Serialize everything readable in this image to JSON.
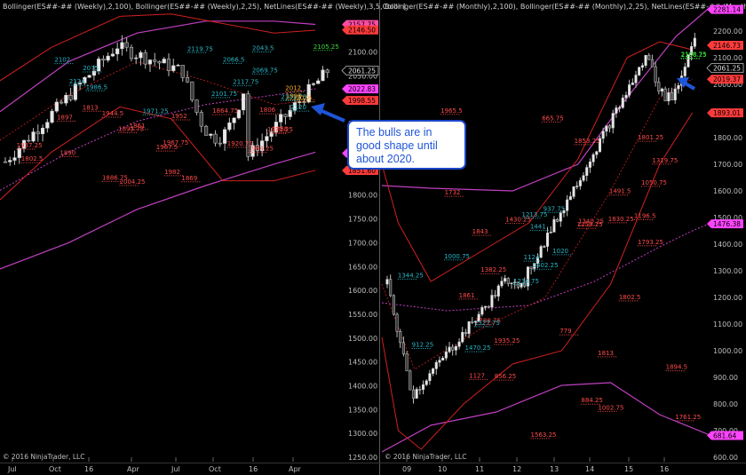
{
  "panels": [
    {
      "id": "weekly",
      "header": "Bollinger(ES##-## (Weekly),2,100), Bollinger(ES##-## (Weekly),2,25), NetLines(ES##-## (Weekly),3,5,Color [",
      "copyright": "© 2016 NinjaTrader, LLC",
      "y_ticks": [
        2200,
        2150,
        2100,
        2050,
        2000,
        1950,
        1900,
        1850,
        1800,
        1750,
        1700,
        1650,
        1600,
        1550,
        1500,
        1450,
        1400,
        1350,
        1300,
        1250
      ],
      "x_labels": [
        "Jul",
        "Oct",
        "16",
        "Apr",
        "Jul",
        "Oct",
        "16",
        "Apr"
      ],
      "price_tags": [
        {
          "text": "2157.75",
          "color": "#ff4da6"
        },
        {
          "text": "2146.50",
          "color": "#ff3b3b"
        },
        {
          "text": "2061.25",
          "color": "#000000"
        },
        {
          "text": "2022.83",
          "color": "#ff44ff"
        },
        {
          "text": "1998.55",
          "color": "#ff3b3b"
        },
        {
          "text": "1887.87",
          "color": "#ff44ff"
        },
        {
          "text": "1851.60",
          "color": "#ff3b3b"
        }
      ],
      "annotations_red": [
        "1864.75",
        "1952",
        "1897",
        "1944.5",
        "1890",
        "1972.25",
        "1813",
        "1982",
        "1967.75",
        "1984.25",
        "1937.25",
        "1893.75",
        "1861",
        "1868",
        "1920.75",
        "1886.75",
        "1869",
        "1802.5",
        "1806",
        "2004.25",
        "1967.5"
      ],
      "annotations_teal": [
        "2117.75",
        "2124",
        "2103.75",
        "2101.75",
        "2120",
        "2102",
        "2119.75",
        "2075",
        "2043.5",
        "2069.75",
        "1986.5",
        "1971.25",
        "2066.5"
      ],
      "annotations_green": [
        "2105.25"
      ],
      "annotations_orange": [
        "2026",
        "2012",
        "1995"
      ]
    },
    {
      "id": "monthly",
      "header": "Bollinger(ES##-## (Monthly),2,100), Bollinger(ES##-## (Monthly),2,25), NetLines(ES##-## (Monthly),3,5,Co",
      "copyright": "© 2016 NinjaTrader, LLC",
      "y_ticks": [
        2300,
        2200,
        2100,
        2000,
        1900,
        1800,
        1700,
        1600,
        1500,
        1400,
        1300,
        1200,
        1100,
        1000,
        900,
        800,
        700,
        600
      ],
      "x_labels": [
        "09",
        "10",
        "11",
        "12",
        "13",
        "14",
        "15",
        "16"
      ],
      "price_tags": [
        {
          "text": "2281.14",
          "color": "#ff44ff"
        },
        {
          "text": "2146.73",
          "color": "#ff3b3b"
        },
        {
          "text": "2061.25",
          "color": "#000000"
        },
        {
          "text": "2019.37",
          "color": "#ff3b3b"
        },
        {
          "text": "1893.01",
          "color": "#ff3b3b"
        },
        {
          "text": "1476.38",
          "color": "#ff44ff"
        },
        {
          "text": "681.64",
          "color": "#ff44ff"
        }
      ],
      "annotations_red": [
        "1802.5",
        "1861",
        "1894.5",
        "1813",
        "1761.25",
        "1732",
        "1853.25",
        "1843",
        "1801.25",
        "1793.25",
        "1788.75",
        "1563.25",
        "1491.5",
        "1430.25",
        "1382.25",
        "1340.25",
        "1319.75",
        "1259.25",
        "1196.5",
        "1127",
        "1050.75",
        "1002.75",
        "884.25",
        "856.25",
        "779",
        "665.75",
        "1935.25",
        "1830.25",
        "1965.5"
      ],
      "annotations_teal": [
        "1441",
        "1213.75",
        "1214.75",
        "1344.25",
        "1124",
        "1000.75",
        "1020",
        "937.75",
        "912.25",
        "1402.25",
        "1470.25",
        "1527.75"
      ],
      "annotations_green": [
        "2106.25",
        "2108.75"
      ]
    }
  ],
  "callout": {
    "text": "The bulls are in good shape until about 2020."
  },
  "chart_data": [
    {
      "type": "candlestick",
      "title": "ES##-## (Weekly)",
      "ylim": [
        1250,
        2200
      ],
      "x_labels": [
        "Jul",
        "Oct",
        "16",
        "Apr",
        "Jul",
        "Oct",
        "16",
        "Apr"
      ],
      "bollinger_100": {
        "upper_end": 2157.75,
        "middle_end": 2022.83,
        "lower_end": 1887.87
      },
      "bollinger_25": {
        "upper_end": 2146.5,
        "lower_end": 1851.6
      },
      "last_price": 2061.25
    },
    {
      "type": "candlestick",
      "title": "ES##-## (Monthly)",
      "ylim": [
        600,
        2300
      ],
      "x_labels": [
        "09",
        "10",
        "11",
        "12",
        "13",
        "14",
        "15",
        "16"
      ],
      "bollinger_100": {
        "upper_end": 2281.14,
        "middle_end": 1476.38,
        "lower_end": 681.64
      },
      "bollinger_25": {
        "upper_end": 2146.73,
        "lower_end": 1893.01
      },
      "last_price": 2061.25
    }
  ]
}
